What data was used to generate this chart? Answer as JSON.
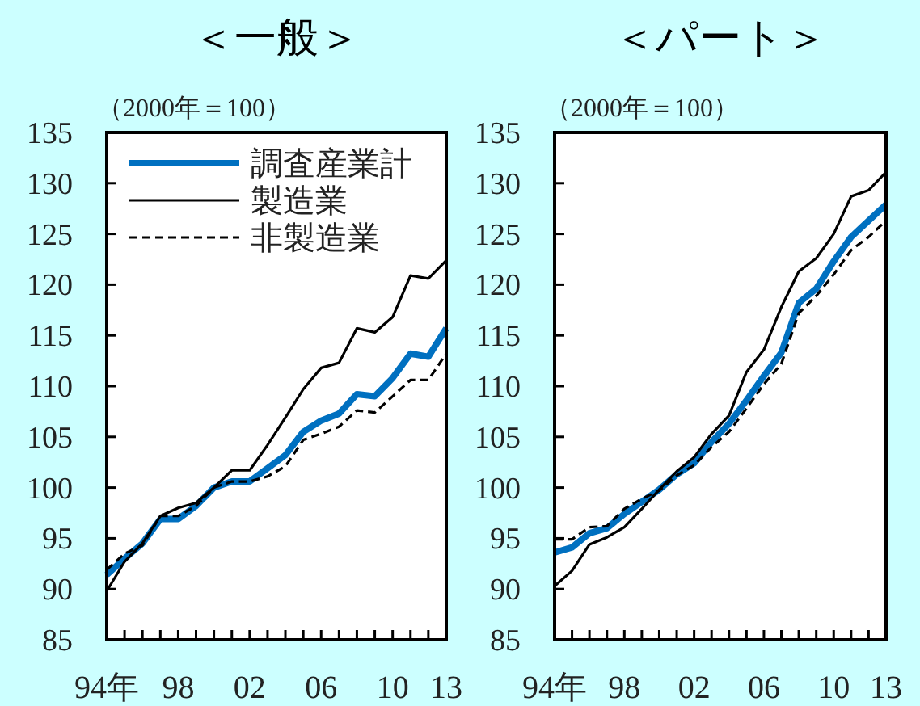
{
  "chart_data": [
    {
      "type": "line",
      "title": "＜一般＞",
      "ylabel": "（2000年＝100）",
      "x": [
        "1994",
        "1995",
        "1996",
        "1997",
        "1998",
        "1999",
        "2000",
        "2001",
        "2002",
        "2003",
        "2004",
        "2005",
        "2006",
        "2007",
        "2008",
        "2009",
        "2010",
        "2011",
        "2012",
        "2013"
      ],
      "xlim": [
        "1994",
        "2013"
      ],
      "xticks": [
        {
          "value": "1994",
          "label": "94年"
        },
        {
          "value": "1995",
          "label": null
        },
        {
          "value": "1996",
          "label": null
        },
        {
          "value": "1997",
          "label": null
        },
        {
          "value": "1998",
          "label": "98"
        },
        {
          "value": "1999",
          "label": null
        },
        {
          "value": "2000",
          "label": null
        },
        {
          "value": "2001",
          "label": null
        },
        {
          "value": "2002",
          "label": "02"
        },
        {
          "value": "2003",
          "label": null
        },
        {
          "value": "2004",
          "label": null
        },
        {
          "value": "2005",
          "label": null
        },
        {
          "value": "2006",
          "label": "06"
        },
        {
          "value": "2007",
          "label": null
        },
        {
          "value": "2008",
          "label": null
        },
        {
          "value": "2009",
          "label": null
        },
        {
          "value": "2010",
          "label": "10"
        },
        {
          "value": "2011",
          "label": null
        },
        {
          "value": "2012",
          "label": null
        },
        {
          "value": "2013",
          "label": "13"
        }
      ],
      "ylim": [
        85,
        135
      ],
      "yticks": [
        85,
        90,
        95,
        100,
        105,
        110,
        115,
        120,
        125,
        130,
        135
      ],
      "legend": "top left",
      "series": [
        {
          "name": "調査産業計",
          "color": "#0070c0",
          "values": [
            91.4,
            93.0,
            94.5,
            96.9,
            96.9,
            98.2,
            100,
            100.6,
            100.6,
            101.9,
            103.2,
            105.5,
            106.6,
            107.3,
            109.2,
            109.0,
            110.8,
            113.2,
            112.9,
            115.7
          ]
        },
        {
          "name": "製造業",
          "color": "#000000",
          "values": [
            89.8,
            92.7,
            94.5,
            97.2,
            98.0,
            98.5,
            100,
            101.7,
            101.7,
            104.2,
            106.9,
            109.7,
            111.8,
            112.3,
            115.7,
            115.3,
            116.8,
            120.9,
            120.6,
            122.4
          ]
        },
        {
          "name": "非製造業",
          "color": "#000000",
          "line_style": "dashed",
          "values": [
            91.9,
            93.5,
            94.3,
            97.2,
            97.2,
            98.2,
            100,
            100.6,
            100.6,
            101.1,
            102.1,
            104.7,
            105.3,
            106.0,
            107.6,
            107.4,
            109.0,
            110.6,
            110.6,
            113.2
          ]
        }
      ]
    },
    {
      "type": "line",
      "title": "＜パート＞",
      "ylabel": "（2000年＝100）",
      "x": [
        "1994",
        "1995",
        "1996",
        "1997",
        "1998",
        "1999",
        "2000",
        "2001",
        "2002",
        "2003",
        "2004",
        "2005",
        "2006",
        "2007",
        "2008",
        "2009",
        "2010",
        "2011",
        "2012",
        "2013"
      ],
      "xlim": [
        "1994",
        "2013"
      ],
      "xticks": [
        {
          "value": "1994",
          "label": "94年"
        },
        {
          "value": "1995",
          "label": null
        },
        {
          "value": "1996",
          "label": null
        },
        {
          "value": "1997",
          "label": null
        },
        {
          "value": "1998",
          "label": "98"
        },
        {
          "value": "1999",
          "label": null
        },
        {
          "value": "2000",
          "label": null
        },
        {
          "value": "2001",
          "label": null
        },
        {
          "value": "2002",
          "label": "02"
        },
        {
          "value": "2003",
          "label": null
        },
        {
          "value": "2004",
          "label": null
        },
        {
          "value": "2005",
          "label": null
        },
        {
          "value": "2006",
          "label": "06"
        },
        {
          "value": "2007",
          "label": null
        },
        {
          "value": "2008",
          "label": null
        },
        {
          "value": "2009",
          "label": null
        },
        {
          "value": "2010",
          "label": "10"
        },
        {
          "value": "2011",
          "label": null
        },
        {
          "value": "2012",
          "label": null
        },
        {
          "value": "2013",
          "label": "13"
        }
      ],
      "ylim": [
        85,
        135
      ],
      "yticks": [
        85,
        90,
        95,
        100,
        105,
        110,
        115,
        120,
        125,
        130,
        135
      ],
      "series": [
        {
          "color": "#0070c0",
          "values": [
            93.6,
            94.1,
            95.5,
            96.0,
            97.4,
            98.6,
            99.8,
            101.3,
            102.4,
            104.5,
            106.3,
            108.6,
            111.0,
            113.3,
            118.2,
            119.6,
            122.3,
            124.7,
            126.3,
            127.9
          ]
        },
        {
          "color": "#000000",
          "values": [
            90.3,
            91.8,
            94.4,
            95.1,
            96.1,
            97.9,
            99.8,
            101.6,
            103.0,
            105.3,
            107.1,
            111.4,
            113.6,
            117.8,
            121.3,
            122.6,
            125.0,
            128.7,
            129.3,
            131.1
          ]
        },
        {
          "color": "#000000",
          "line_style": "dashed",
          "values": [
            94.9,
            94.9,
            96.1,
            96.2,
            97.9,
            98.9,
            99.7,
            101.2,
            102.2,
            104.0,
            105.5,
            107.8,
            110.2,
            112.2,
            117.2,
            118.9,
            121.0,
            123.4,
            124.7,
            126.3
          ]
        }
      ]
    }
  ]
}
